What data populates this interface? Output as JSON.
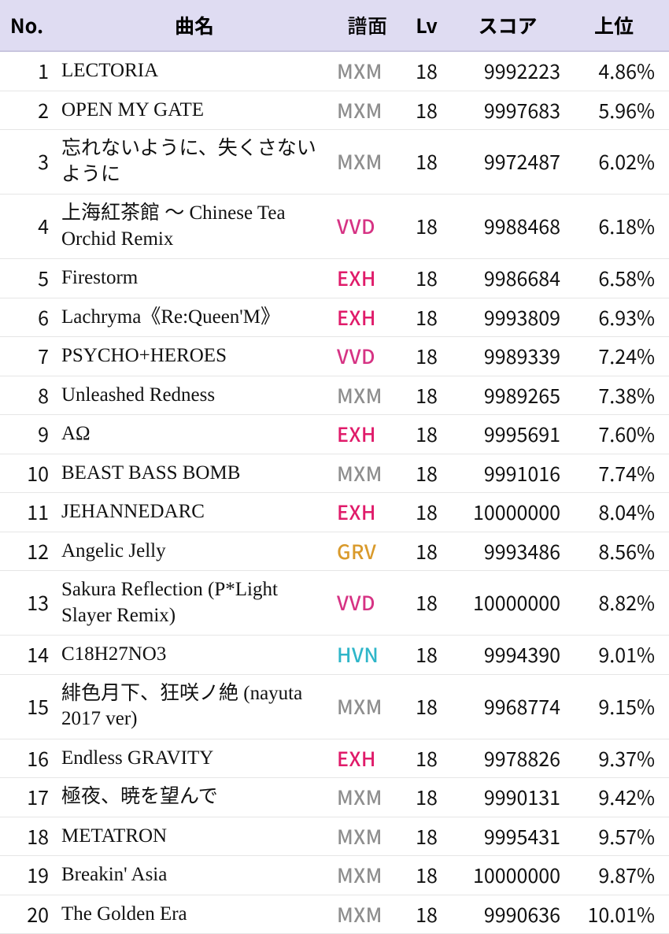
{
  "table": {
    "headers": {
      "no": "No.",
      "title": "曲名",
      "chart": "譜面",
      "lv": "Lv",
      "score": "スコア",
      "rank": "上位"
    },
    "chart_colors": {
      "MXM": "#8e8e8e",
      "VVD": "#d63384",
      "EXH": "#e01b6a",
      "GRV": "#d99a2b",
      "HVN": "#2fb6c9"
    },
    "rows": [
      {
        "no": "1",
        "title": "LECTORIA",
        "chart": "MXM",
        "lv": "18",
        "score": "9992223",
        "rank": "4.86%"
      },
      {
        "no": "2",
        "title": "OPEN MY GATE",
        "chart": "MXM",
        "lv": "18",
        "score": "9997683",
        "rank": "5.96%"
      },
      {
        "no": "3",
        "title": "忘れないように、失くさないように",
        "chart": "MXM",
        "lv": "18",
        "score": "9972487",
        "rank": "6.02%"
      },
      {
        "no": "4",
        "title": "上海紅茶館 〜 Chinese Tea Orchid Remix",
        "chart": "VVD",
        "lv": "18",
        "score": "9988468",
        "rank": "6.18%"
      },
      {
        "no": "5",
        "title": "Firestorm",
        "chart": "EXH",
        "lv": "18",
        "score": "9986684",
        "rank": "6.58%"
      },
      {
        "no": "6",
        "title": "Lachryma《Re:Queen'M》",
        "chart": "EXH",
        "lv": "18",
        "score": "9993809",
        "rank": "6.93%"
      },
      {
        "no": "7",
        "title": "PSYCHO+HEROES",
        "chart": "VVD",
        "lv": "18",
        "score": "9989339",
        "rank": "7.24%"
      },
      {
        "no": "8",
        "title": "Unleashed Redness",
        "chart": "MXM",
        "lv": "18",
        "score": "9989265",
        "rank": "7.38%"
      },
      {
        "no": "9",
        "title": "AΩ",
        "chart": "EXH",
        "lv": "18",
        "score": "9995691",
        "rank": "7.60%"
      },
      {
        "no": "10",
        "title": "BEAST BASS BOMB",
        "chart": "MXM",
        "lv": "18",
        "score": "9991016",
        "rank": "7.74%"
      },
      {
        "no": "11",
        "title": "JEHANNEDARC",
        "chart": "EXH",
        "lv": "18",
        "score": "10000000",
        "rank": "8.04%"
      },
      {
        "no": "12",
        "title": "Angelic Jelly",
        "chart": "GRV",
        "lv": "18",
        "score": "9993486",
        "rank": "8.56%"
      },
      {
        "no": "13",
        "title": "Sakura Reflection (P*Light Slayer Remix)",
        "chart": "VVD",
        "lv": "18",
        "score": "10000000",
        "rank": "8.82%"
      },
      {
        "no": "14",
        "title": "C18H27NO3",
        "chart": "HVN",
        "lv": "18",
        "score": "9994390",
        "rank": "9.01%"
      },
      {
        "no": "15",
        "title": "緋色月下、狂咲ノ絶 (nayuta 2017 ver)",
        "chart": "MXM",
        "lv": "18",
        "score": "9968774",
        "rank": "9.15%"
      },
      {
        "no": "16",
        "title": "Endless GRAVITY",
        "chart": "EXH",
        "lv": "18",
        "score": "9978826",
        "rank": "9.37%"
      },
      {
        "no": "17",
        "title": "極夜、暁を望んで",
        "chart": "MXM",
        "lv": "18",
        "score": "9990131",
        "rank": "9.42%"
      },
      {
        "no": "18",
        "title": "METATRON",
        "chart": "MXM",
        "lv": "18",
        "score": "9995431",
        "rank": "9.57%"
      },
      {
        "no": "19",
        "title": "Breakin' Asia",
        "chart": "MXM",
        "lv": "18",
        "score": "10000000",
        "rank": "9.87%"
      },
      {
        "no": "20",
        "title": "The Golden Era",
        "chart": "MXM",
        "lv": "18",
        "score": "9990636",
        "rank": "10.01%"
      }
    ]
  }
}
